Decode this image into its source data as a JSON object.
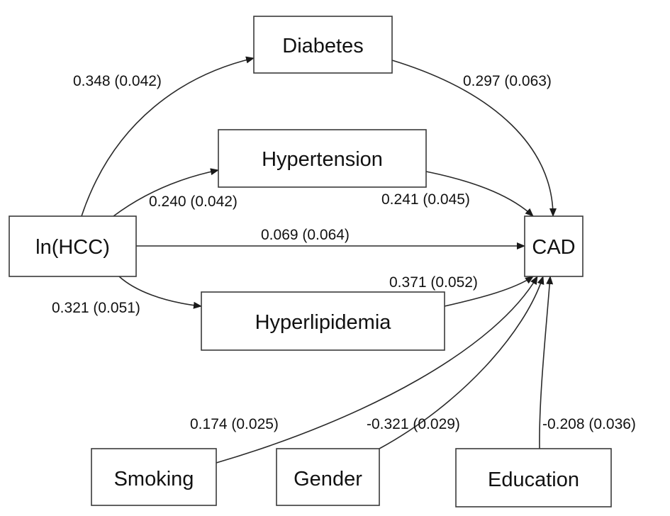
{
  "nodes": {
    "diabetes": "Diabetes",
    "hypertension": "Hypertension",
    "hcc": "ln(HCC)",
    "hyperlipidemia": "Hyperlipidemia",
    "cad": "CAD",
    "smoking": "Smoking",
    "gender": "Gender",
    "education": "Education"
  },
  "edges": {
    "hcc_diabetes": "0.348 (0.042)",
    "diabetes_cad": "0.297 (0.063)",
    "hcc_hypertension": "0.240 (0.042)",
    "hypertension_cad": "0.241 (0.045)",
    "hcc_cad": "0.069 (0.064)",
    "hcc_hyperlipidemia": "0.321 (0.051)",
    "hyperlipidemia_cad": "0.371 (0.052)",
    "smoking_cad": "0.174 (0.025)",
    "gender_cad": "-0.321 (0.029)",
    "education_cad": "-0.208 (0.036)"
  }
}
